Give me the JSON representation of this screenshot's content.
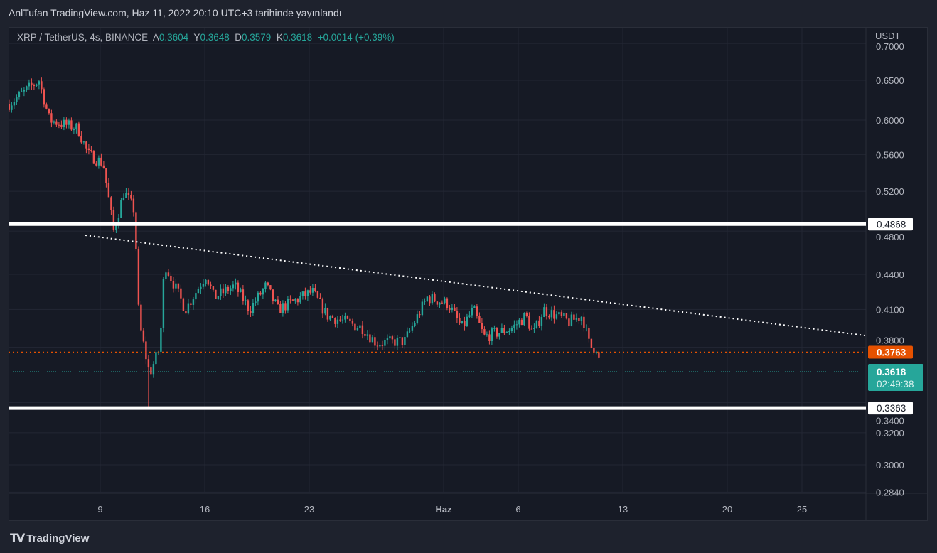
{
  "published": "AnlTufan TradingView.com, Haz 11, 2022 20:10 UTC+3 tarihinde yayınlandı",
  "legend": {
    "symbol": "XRP / TetherUS, 4s, BINANCE",
    "o_label": "A",
    "o": "0.3604",
    "h_label": "Y",
    "h": "0.3648",
    "l_label": "D",
    "l": "0.3579",
    "c_label": "K",
    "c": "0.3618",
    "change": "+0.0014 (+0.39%)"
  },
  "brand": "TradingView",
  "colors": {
    "up": "#26a69a",
    "down": "#ef5350",
    "orange": "#e65100",
    "grid": "#232734",
    "axis_text": "#b2b5be"
  },
  "chart_data": {
    "type": "candlestick",
    "scale": "log",
    "currency": "USDT",
    "y_ticks": [
      "0.7000",
      "0.6500",
      "0.6000",
      "0.5600",
      "0.5200",
      "0.4800",
      "0.4400",
      "0.4100",
      "0.3800",
      "0.3400",
      "0.3200",
      "0.3000",
      "0.2840"
    ],
    "x_ticks": [
      {
        "label": "9",
        "day": 9
      },
      {
        "label": "16",
        "day": 16
      },
      {
        "label": "23",
        "day": 23
      },
      {
        "label": "Haz",
        "day": 32
      },
      {
        "label": "6",
        "day": 37
      },
      {
        "label": "13",
        "day": 44
      },
      {
        "label": "20",
        "day": 51
      },
      {
        "label": "25",
        "day": 56
      }
    ],
    "x_range_days": [
      2.5,
      60.3
    ],
    "y_range": [
      0.275,
      0.73
    ],
    "approx_close_path": [
      [
        2.9,
        0.62
      ],
      [
        4.9,
        0.65
      ],
      [
        5.6,
        0.6
      ],
      [
        7.5,
        0.59
      ],
      [
        8.2,
        0.56
      ],
      [
        9.2,
        0.55
      ],
      [
        9.9,
        0.48
      ],
      [
        10.6,
        0.52
      ],
      [
        11.3,
        0.5
      ],
      [
        11.6,
        0.4
      ],
      [
        12.3,
        0.36
      ],
      [
        13,
        0.38
      ],
      [
        13.3,
        0.45
      ],
      [
        14.7,
        0.41
      ],
      [
        16.1,
        0.44
      ],
      [
        16.6,
        0.42
      ],
      [
        18,
        0.43
      ],
      [
        19,
        0.41
      ],
      [
        20.1,
        0.43
      ],
      [
        20.9,
        0.41
      ],
      [
        23.2,
        0.425
      ],
      [
        24.2,
        0.405
      ],
      [
        26.6,
        0.395
      ],
      [
        27.5,
        0.383
      ],
      [
        29.4,
        0.385
      ],
      [
        30.9,
        0.42
      ],
      [
        32.3,
        0.415
      ],
      [
        33.2,
        0.395
      ],
      [
        34,
        0.41
      ],
      [
        34.7,
        0.388
      ],
      [
        36.6,
        0.395
      ],
      [
        37.5,
        0.405
      ],
      [
        38,
        0.39
      ],
      [
        38.7,
        0.41
      ],
      [
        40.4,
        0.4
      ],
      [
        41.3,
        0.405
      ],
      [
        41.8,
        0.38
      ],
      [
        42.3,
        0.38
      ],
      [
        42.5,
        0.362
      ]
    ],
    "min_wick": {
      "day": 12.2,
      "price": 0.3363
    },
    "horizontal_lines": [
      {
        "price": 0.4868,
        "label": "0.4868",
        "style": "solid-white"
      },
      {
        "price": 0.3363,
        "label": "0.3363",
        "style": "solid-white"
      },
      {
        "price": 0.3763,
        "label": "0.3763",
        "style": "dotted-orange"
      }
    ],
    "last_price": {
      "price": 0.3618,
      "label": "0.3618",
      "countdown": "02:49:38"
    },
    "trendline": {
      "from": [
        8,
        0.476
      ],
      "to": [
        60.3,
        0.389
      ],
      "style": "dotted-white"
    }
  }
}
